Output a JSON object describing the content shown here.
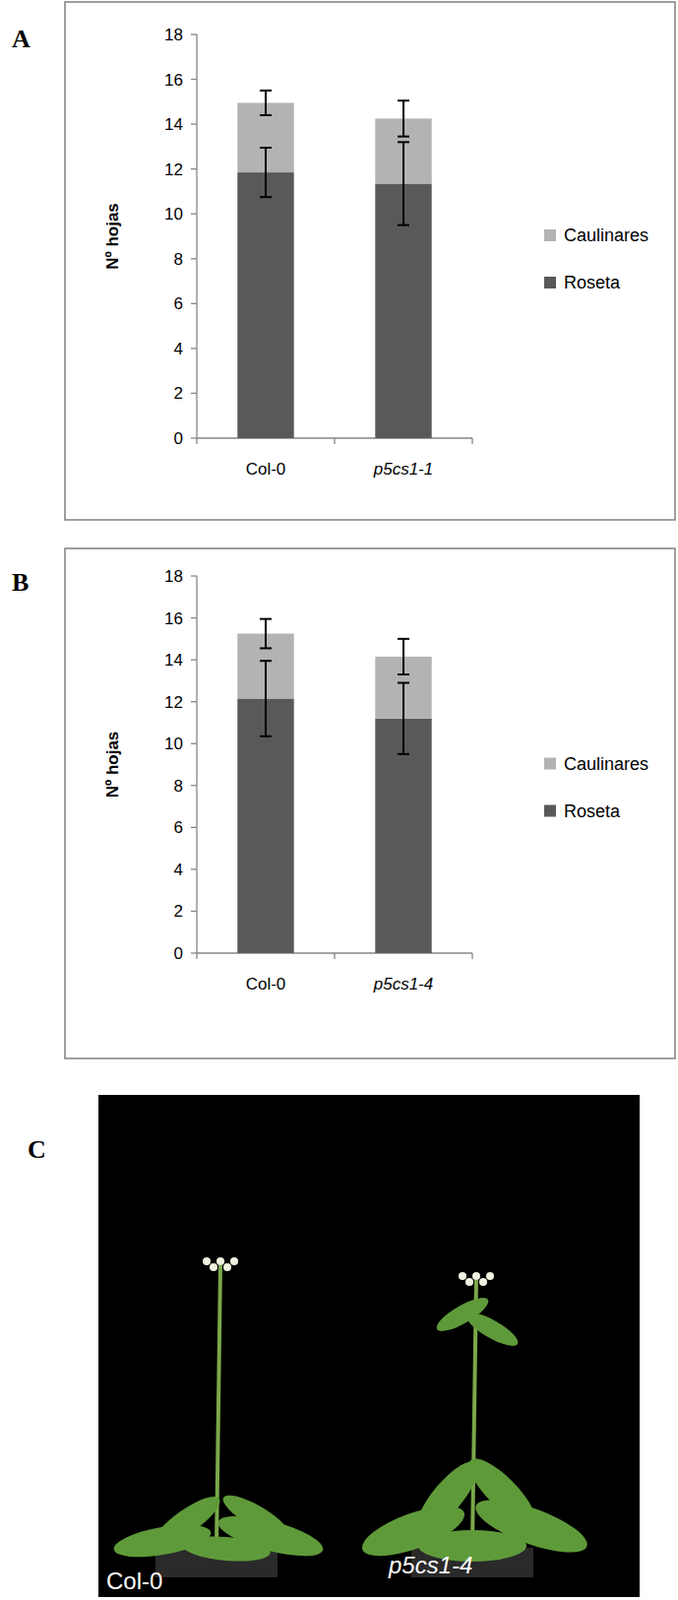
{
  "chart_data": [
    {
      "type": "bar",
      "stacked": true,
      "y_label": "Nº hojas",
      "categories": [
        "Col-0",
        "p5cs1-1"
      ],
      "series": [
        {
          "name": "Roseta",
          "color": "#595959",
          "values": [
            11.85,
            11.35
          ],
          "errors": [
            1.1,
            1.85
          ]
        },
        {
          "name": "Caulinares",
          "color": "#b3b3b3",
          "values": [
            3.1,
            2.9
          ],
          "errors": [
            0.55,
            0.8
          ]
        }
      ],
      "ylim": [
        0,
        18
      ],
      "yticks": [
        0,
        2,
        4,
        6,
        8,
        10,
        12,
        14,
        16,
        18
      ],
      "legend": "right",
      "grid": false
    },
    {
      "type": "bar",
      "stacked": true,
      "y_label": "Nº hojas",
      "categories": [
        "Col-0",
        "p5cs1-4"
      ],
      "series": [
        {
          "name": "Roseta",
          "color": "#595959",
          "values": [
            12.15,
            11.2
          ],
          "errors": [
            1.8,
            1.7
          ]
        },
        {
          "name": "Caulinares",
          "color": "#b3b3b3",
          "values": [
            3.1,
            2.95
          ],
          "errors": [
            0.7,
            0.85
          ]
        }
      ],
      "ylim": [
        0,
        18
      ],
      "yticks": [
        0,
        2,
        4,
        6,
        8,
        10,
        12,
        14,
        16,
        18
      ],
      "legend": "right",
      "grid": false
    }
  ],
  "panel_labels": [
    "A",
    "B",
    "C"
  ],
  "photo": {
    "labels": [
      "Col-0",
      "p5cs1-4"
    ]
  }
}
